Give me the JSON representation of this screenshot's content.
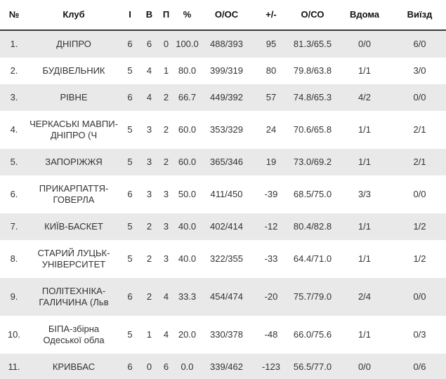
{
  "colors": {
    "stripe": "#e9e9e9",
    "border": "#3a3a3a",
    "header_text": "#111111",
    "body_text": "#333333",
    "background": "#ffffff"
  },
  "standings": {
    "columns": {
      "num": "№",
      "club": "Клуб",
      "games": "І",
      "wins": "В",
      "losses": "П",
      "pct": "%",
      "points": "О/ОС",
      "diff": "+/-",
      "avg": "О/СО",
      "home": "Вдома",
      "away": "Виїзд"
    },
    "rows": [
      {
        "num": "1.",
        "club": "ДНІПРО",
        "games": "6",
        "wins": "6",
        "losses": "0",
        "pct": "100.0",
        "points": "488/393",
        "diff": "95",
        "avg": "81.3/65.5",
        "home": "0/0",
        "away": "6/0"
      },
      {
        "num": "2.",
        "club": "БУДІВЕЛЬНИК",
        "games": "5",
        "wins": "4",
        "losses": "1",
        "pct": "80.0",
        "points": "399/319",
        "diff": "80",
        "avg": "79.8/63.8",
        "home": "1/1",
        "away": "3/0"
      },
      {
        "num": "3.",
        "club": "РІВНЕ",
        "games": "6",
        "wins": "4",
        "losses": "2",
        "pct": "66.7",
        "points": "449/392",
        "diff": "57",
        "avg": "74.8/65.3",
        "home": "4/2",
        "away": "0/0"
      },
      {
        "num": "4.",
        "club": "ЧЕРКАСЬКІ МАВПИ-ДНІПРО (Ч",
        "games": "5",
        "wins": "3",
        "losses": "2",
        "pct": "60.0",
        "points": "353/329",
        "diff": "24",
        "avg": "70.6/65.8",
        "home": "1/1",
        "away": "2/1"
      },
      {
        "num": "5.",
        "club": "ЗАПОРІЖЖЯ",
        "games": "5",
        "wins": "3",
        "losses": "2",
        "pct": "60.0",
        "points": "365/346",
        "diff": "19",
        "avg": "73.0/69.2",
        "home": "1/1",
        "away": "2/1"
      },
      {
        "num": "6.",
        "club": "ПРИКАРПАТТЯ-ГОВЕРЛА",
        "games": "6",
        "wins": "3",
        "losses": "3",
        "pct": "50.0",
        "points": "411/450",
        "diff": "-39",
        "avg": "68.5/75.0",
        "home": "3/3",
        "away": "0/0"
      },
      {
        "num": "7.",
        "club": "КИЇВ-БАСКЕТ",
        "games": "5",
        "wins": "2",
        "losses": "3",
        "pct": "40.0",
        "points": "402/414",
        "diff": "-12",
        "avg": "80.4/82.8",
        "home": "1/1",
        "away": "1/2"
      },
      {
        "num": "8.",
        "club": "СТАРИЙ ЛУЦЬК-УНІВЕРСИТЕТ",
        "games": "5",
        "wins": "2",
        "losses": "3",
        "pct": "40.0",
        "points": "322/355",
        "diff": "-33",
        "avg": "64.4/71.0",
        "home": "1/1",
        "away": "1/2"
      },
      {
        "num": "9.",
        "club": "ПОЛІТЕХНІКА-ГАЛИЧИНА (Льв",
        "games": "6",
        "wins": "2",
        "losses": "4",
        "pct": "33.3",
        "points": "454/474",
        "diff": "-20",
        "avg": "75.7/79.0",
        "home": "2/4",
        "away": "0/0"
      },
      {
        "num": "10.",
        "club": "БІПА-збірна Одеської обла",
        "games": "5",
        "wins": "1",
        "losses": "4",
        "pct": "20.0",
        "points": "330/378",
        "diff": "-48",
        "avg": "66.0/75.6",
        "home": "1/1",
        "away": "0/3"
      },
      {
        "num": "11.",
        "club": "КРИВБАС",
        "games": "6",
        "wins": "0",
        "losses": "6",
        "pct": "0.0",
        "points": "339/462",
        "diff": "-123",
        "avg": "56.5/77.0",
        "home": "0/0",
        "away": "0/6"
      }
    ]
  }
}
